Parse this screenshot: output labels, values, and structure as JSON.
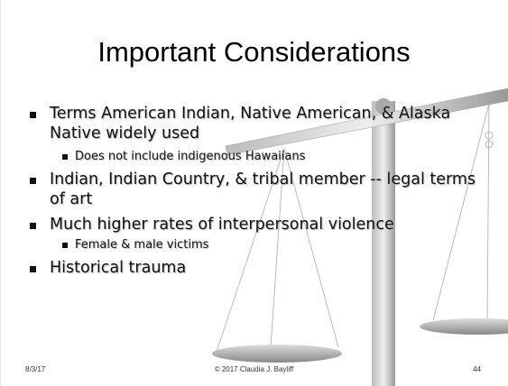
{
  "title": "Important Considerations",
  "bullets": [
    {
      "level": 1,
      "text": "Terms American Indian, Native American, & Alaska Native widely used"
    },
    {
      "level": 2,
      "text": "Does not include indigenous Hawaiians"
    },
    {
      "level": 1,
      "text": "Indian, Indian Country, & tribal member -- legal terms of art"
    },
    {
      "level": 1,
      "text": "Much higher rates of interpersonal violence"
    },
    {
      "level": 2,
      "text": "Female & male victims"
    },
    {
      "level": 1,
      "text": "Historical trauma"
    }
  ],
  "footer": {
    "date": "8/3/17",
    "copyright": "© 2017 Claudia J. Bayliff",
    "page": "44"
  }
}
